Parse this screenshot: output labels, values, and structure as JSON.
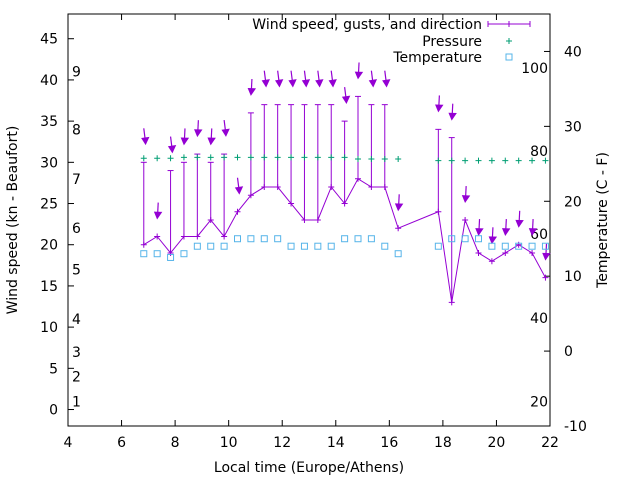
{
  "chart_data": {
    "type": "line",
    "xlabel": "Local time (Europe/Athens)",
    "ylabel_left": "Wind speed (kn - Beaufort)",
    "ylabel_right": "Temperature (C - F)",
    "xlim": [
      4,
      22
    ],
    "x_ticks": [
      "4",
      "6",
      "8",
      "10",
      "12",
      "14",
      "16",
      "18",
      "20",
      "22"
    ],
    "ylim_left": [
      -2,
      48
    ],
    "y_ticks_left": [
      "0",
      "5",
      "10",
      "15",
      "20",
      "25",
      "30",
      "35",
      "40",
      "45"
    ],
    "beaufort_labels": [
      {
        "label": "1",
        "kn": 1
      },
      {
        "label": "2",
        "kn": 4
      },
      {
        "label": "3",
        "kn": 7
      },
      {
        "label": "4",
        "kn": 11
      },
      {
        "label": "5",
        "kn": 17
      },
      {
        "label": "6",
        "kn": 22
      },
      {
        "label": "7",
        "kn": 28
      },
      {
        "label": "8",
        "kn": 34
      },
      {
        "label": "9",
        "kn": 41
      }
    ],
    "ylim_right": [
      -10,
      45
    ],
    "y_ticks_right": [
      "-10",
      "0",
      "10",
      "20",
      "30",
      "40"
    ],
    "fahrenheit_labels": [
      {
        "label": "20",
        "c": -6.7
      },
      {
        "label": "40",
        "c": 4.4
      },
      {
        "label": "60",
        "c": 15.6
      },
      {
        "label": "80",
        "c": 26.7
      },
      {
        "label": "100",
        "c": 37.8
      }
    ],
    "legend_position": "top-right",
    "colors": {
      "wind": "#9400d3",
      "pressure": "#009e73",
      "temperature": "#56b4e9"
    },
    "series": [
      {
        "name": "Wind speed, gusts, and direction",
        "x": [
          6.83,
          7.33,
          7.83,
          8.33,
          8.83,
          9.33,
          9.83,
          10.33,
          10.83,
          11.33,
          11.83,
          12.33,
          12.83,
          13.33,
          13.83,
          14.33,
          14.83,
          15.33,
          15.83,
          16.33,
          17.83,
          18.33,
          18.83,
          19.33,
          19.83,
          20.33,
          20.83,
          21.33,
          21.83
        ],
        "wind": [
          20,
          21,
          19,
          21,
          21,
          23,
          21,
          24,
          26,
          27,
          27,
          25,
          23,
          23,
          27,
          25,
          28,
          27,
          27,
          22,
          24,
          13,
          23,
          19,
          18,
          19,
          20,
          19,
          16
        ],
        "gusts": [
          30,
          21,
          29,
          30,
          31,
          30,
          31,
          24,
          36,
          37,
          37,
          37,
          37,
          37,
          37,
          35,
          38,
          37,
          37,
          22,
          34,
          33,
          23,
          19,
          18,
          19,
          20,
          19,
          16
        ],
        "direction_deg": [
          10,
          20,
          10,
          20,
          20,
          20,
          10,
          10,
          20,
          10,
          10,
          10,
          10,
          10,
          10,
          10,
          20,
          10,
          10,
          20,
          20,
          20,
          20,
          20,
          20,
          20,
          20,
          20,
          20
        ]
      },
      {
        "name": "Pressure",
        "x": [
          6.83,
          7.33,
          7.83,
          8.33,
          8.83,
          9.33,
          9.83,
          10.33,
          10.83,
          11.33,
          11.83,
          12.33,
          12.83,
          13.33,
          13.83,
          14.33,
          14.83,
          15.33,
          15.83,
          16.33,
          17.83,
          18.33,
          18.83,
          19.33,
          19.83,
          20.33,
          20.83,
          21.33,
          21.83
        ],
        "values": [
          30.5,
          30.5,
          30.5,
          30.6,
          30.6,
          30.6,
          30.6,
          30.6,
          30.6,
          30.6,
          30.6,
          30.6,
          30.6,
          30.6,
          30.6,
          30.6,
          30.4,
          30.4,
          30.4,
          30.4,
          30.2,
          30.2,
          30.2,
          30.2,
          30.2,
          30.2,
          30.2,
          30.2,
          30.2
        ]
      },
      {
        "name": "Temperature",
        "x": [
          6.83,
          7.33,
          7.83,
          8.33,
          8.83,
          9.33,
          9.83,
          10.33,
          10.83,
          11.33,
          11.83,
          12.33,
          12.83,
          13.33,
          13.83,
          14.33,
          14.83,
          15.33,
          15.83,
          16.33,
          17.83,
          18.33,
          18.83,
          19.33,
          19.83,
          20.33,
          20.83,
          21.33,
          21.83
        ],
        "values": [
          13,
          13,
          12.5,
          13,
          14,
          14,
          14,
          15,
          15,
          15,
          15,
          14,
          14,
          14,
          14,
          15,
          15,
          15,
          14,
          13,
          14,
          15,
          15,
          15,
          14,
          14,
          14,
          14,
          14
        ]
      }
    ]
  }
}
